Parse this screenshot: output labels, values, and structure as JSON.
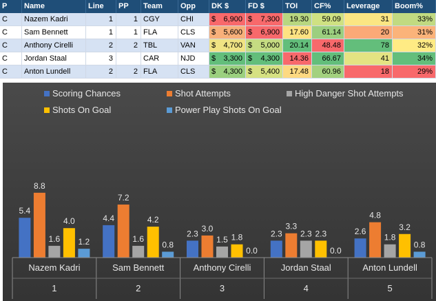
{
  "table": {
    "headers": [
      "P",
      "Name",
      "Line",
      "PP",
      "Team",
      "Opp",
      "DK $",
      "FD $",
      "TOI",
      "CF%",
      "Leverage",
      "Boom%"
    ],
    "rows": [
      {
        "pos": "C",
        "name": "Nazem Kadri",
        "line": "1",
        "pp": "1",
        "team": "CGY",
        "opp": "CHI",
        "dk": "6,900",
        "fd": "7,300",
        "toi": "19.30",
        "cf": "59.09",
        "leverage": "31",
        "boom": "33%"
      },
      {
        "pos": "C",
        "name": "Sam Bennett",
        "line": "1",
        "pp": "1",
        "team": "FLA",
        "opp": "CLS",
        "dk": "5,600",
        "fd": "6,900",
        "toi": "17.60",
        "cf": "61.14",
        "leverage": "20",
        "boom": "31%"
      },
      {
        "pos": "C",
        "name": "Anthony Cirelli",
        "line": "2",
        "pp": "2",
        "team": "TBL",
        "opp": "VAN",
        "dk": "4,700",
        "fd": "5,000",
        "toi": "20.14",
        "cf": "48.48",
        "leverage": "78",
        "boom": "32%"
      },
      {
        "pos": "C",
        "name": "Jordan Staal",
        "line": "3",
        "pp": "",
        "team": "CAR",
        "opp": "NJD",
        "dk": "3,300",
        "fd": "4,300",
        "toi": "14.36",
        "cf": "66.67",
        "leverage": "41",
        "boom": "34%"
      },
      {
        "pos": "C",
        "name": "Anton Lundell",
        "line": "2",
        "pp": "2",
        "team": "FLA",
        "opp": "CLS",
        "dk": "4,300",
        "fd": "5,400",
        "toi": "17.48",
        "cf": "60.96",
        "leverage": "18",
        "boom": "29%"
      }
    ],
    "currency_symbol": "$",
    "cell_colors": {
      "dk": [
        "#f8696b",
        "#f8b07a",
        "#f0e383",
        "#63be7b",
        "#9bd07f"
      ],
      "fd": [
        "#f8696b",
        "#f8696b",
        "#c5dc82",
        "#63be7b",
        "#d6e182"
      ],
      "toi": [
        "#b8d780",
        "#fee282",
        "#63be7b",
        "#f8696b",
        "#fdd981"
      ],
      "cf": [
        "#cfe182",
        "#9ccf7f",
        "#f8696b",
        "#63be7b",
        "#a3d17f"
      ],
      "leverage": [
        "#fbe683",
        "#fba977",
        "#63be7b",
        "#e4e382",
        "#f8696b"
      ],
      "boom": [
        "#c1da81",
        "#fbb37a",
        "#ffeb84",
        "#63be7b",
        "#f8696b"
      ]
    }
  },
  "chart_data": {
    "type": "bar",
    "categories": [
      "Nazem Kadri",
      "Sam Bennett",
      "Anthony Cirelli",
      "Jordan Staal",
      "Anton Lundell"
    ],
    "category_index": [
      "1",
      "2",
      "3",
      "4",
      "5"
    ],
    "series": [
      {
        "name": "Scoring Chances",
        "color": "#4472c4",
        "values": [
          5.4,
          4.4,
          2.3,
          2.3,
          2.6
        ]
      },
      {
        "name": "Shot Attempts",
        "color": "#ed7d31",
        "values": [
          8.8,
          7.2,
          3.0,
          3.3,
          4.8
        ]
      },
      {
        "name": "High Danger Shot Attempts",
        "color": "#a5a5a5",
        "values": [
          1.6,
          1.6,
          1.5,
          2.3,
          1.8
        ]
      },
      {
        "name": "Shots On Goal",
        "color": "#ffc000",
        "values": [
          4.0,
          4.2,
          1.8,
          2.3,
          3.2
        ]
      },
      {
        "name": "Power Play Shots On Goal",
        "color": "#5b9bd5",
        "values": [
          1.2,
          0.8,
          0.0,
          0.0,
          0.8
        ]
      }
    ],
    "ylim": [
      0,
      10
    ],
    "title": "",
    "xlabel": "",
    "ylabel": "",
    "legend_position": "top",
    "grid": false
  }
}
